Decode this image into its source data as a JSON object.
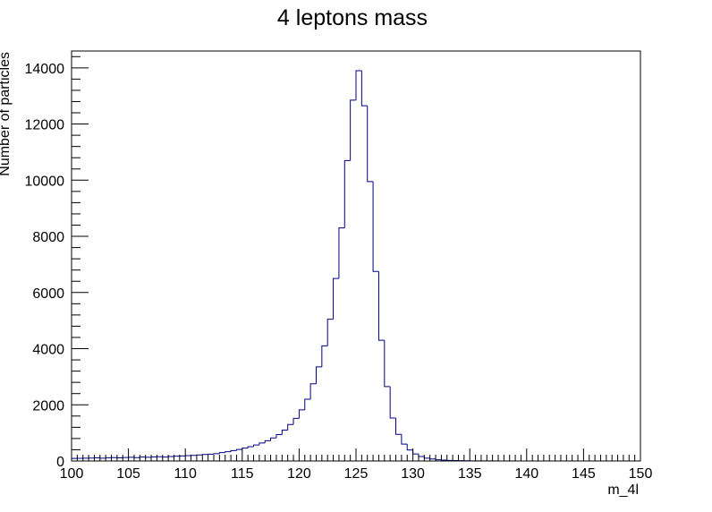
{
  "chart_data": {
    "type": "bar",
    "title": "4 leptons mass",
    "xlabel": "m_4l",
    "ylabel": "Number of particles",
    "xlim": [
      100,
      150
    ],
    "ylim": [
      0,
      14600
    ],
    "bin_width": 0.5,
    "x_ticks": [
      "100",
      "105",
      "110",
      "115",
      "120",
      "125",
      "130",
      "135",
      "140",
      "145",
      "150"
    ],
    "y_ticks": [
      "0",
      "2000",
      "4000",
      "6000",
      "8000",
      "10000",
      "12000",
      "14000"
    ],
    "line_color": "#000080",
    "x": [
      100.0,
      100.5,
      101.0,
      101.5,
      102.0,
      102.5,
      103.0,
      103.5,
      104.0,
      104.5,
      105.0,
      105.5,
      106.0,
      106.5,
      107.0,
      107.5,
      108.0,
      108.5,
      109.0,
      109.5,
      110.0,
      110.5,
      111.0,
      111.5,
      112.0,
      112.5,
      113.0,
      113.5,
      114.0,
      114.5,
      115.0,
      115.5,
      116.0,
      116.5,
      117.0,
      117.5,
      118.0,
      118.5,
      119.0,
      119.5,
      120.0,
      120.5,
      121.0,
      121.5,
      122.0,
      122.5,
      123.0,
      123.5,
      124.0,
      124.5,
      125.0,
      125.5,
      126.0,
      126.5,
      127.0,
      127.5,
      128.0,
      128.5,
      129.0,
      129.5,
      130.0,
      130.5,
      131.0,
      131.5,
      132.0,
      132.5,
      133.0,
      133.5,
      134.0,
      134.5,
      135.0,
      135.5,
      136.0,
      136.5,
      137.0,
      137.5,
      138.0,
      138.5,
      139.0,
      139.5,
      140.0,
      140.5,
      141.0,
      141.5,
      142.0,
      142.5,
      143.0,
      143.5,
      144.0,
      144.5,
      145.0,
      145.5,
      146.0,
      146.5,
      147.0,
      147.5,
      148.0,
      148.5,
      149.0,
      149.5
    ],
    "values": [
      90,
      95,
      100,
      105,
      110,
      100,
      115,
      120,
      110,
      125,
      130,
      120,
      140,
      130,
      145,
      150,
      140,
      160,
      170,
      180,
      190,
      200,
      215,
      230,
      245,
      260,
      300,
      330,
      370,
      410,
      460,
      510,
      570,
      640,
      720,
      820,
      940,
      1100,
      1300,
      1520,
      1820,
      2200,
      2750,
      3350,
      4100,
      5050,
      6500,
      8300,
      10700,
      12850,
      13900,
      12650,
      9950,
      6750,
      4300,
      2650,
      1530,
      950,
      600,
      390,
      250,
      160,
      100,
      70,
      45,
      30,
      20,
      15,
      10,
      8,
      5,
      4,
      3,
      2,
      2,
      1,
      1,
      1,
      0,
      0,
      0,
      0,
      0,
      0,
      0,
      0,
      0,
      0,
      0,
      0,
      0,
      0,
      0,
      0,
      0,
      0,
      0,
      0,
      0,
      0
    ]
  }
}
